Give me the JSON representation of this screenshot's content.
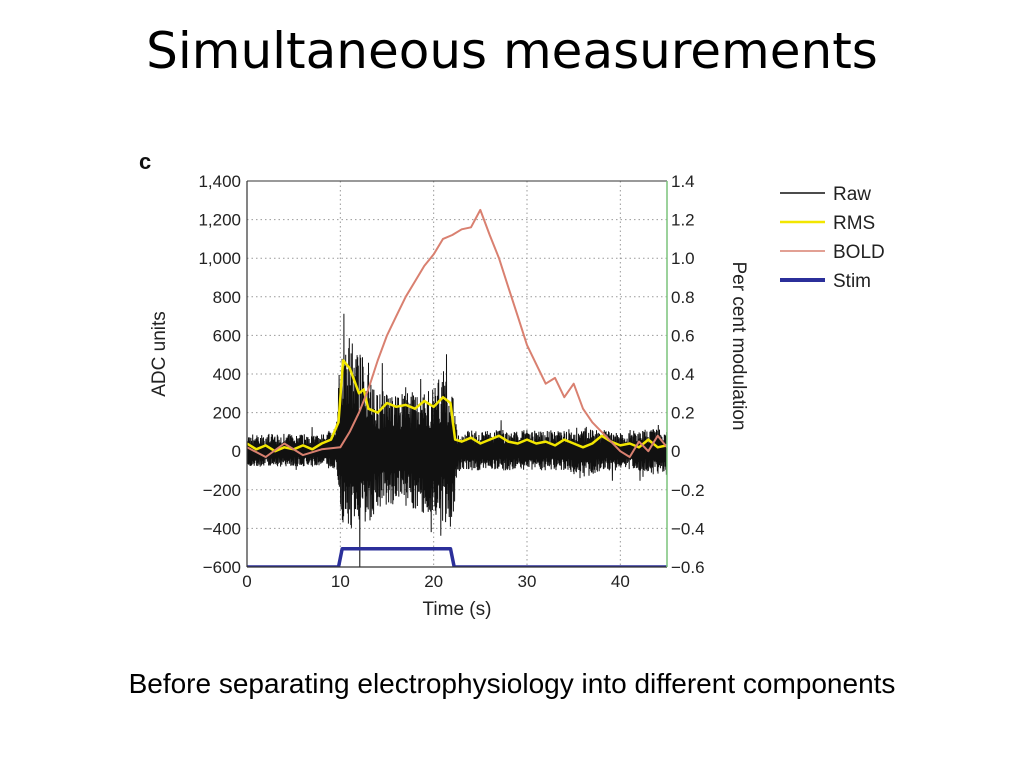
{
  "slide": {
    "title": "Simultaneous measurements",
    "caption": "Before separating electrophysiology into different components"
  },
  "chart_data": {
    "type": "line",
    "panel_label": "c",
    "xlabel": "Time (s)",
    "ylabel_left": "ADC units",
    "ylabel_right": "Per cent modulation",
    "xlim": [
      0,
      45
    ],
    "ylim_left": [
      -600,
      1400
    ],
    "ylim_right": [
      -0.6,
      1.4
    ],
    "x_ticks": [
      0,
      10,
      20,
      30,
      40
    ],
    "x_tick_labels": [
      "0",
      "10",
      "20",
      "30",
      "40"
    ],
    "y_left_ticks": [
      1400,
      1200,
      1000,
      800,
      600,
      400,
      200,
      0,
      -200,
      -400,
      -600
    ],
    "y_left_tick_labels": [
      "1,400",
      "1,200",
      "1,000",
      "800",
      "600",
      "400",
      "200",
      "0",
      "−200",
      "−400",
      "−600"
    ],
    "y_right_ticks": [
      1.4,
      1.2,
      1.0,
      0.8,
      0.6,
      0.4,
      0.2,
      0,
      -0.2,
      -0.4,
      -0.6
    ],
    "y_right_tick_labels": [
      "1.4",
      "1.2",
      "1.0",
      "0.8",
      "0.6",
      "0.4",
      "0.2",
      "0",
      "−0.2",
      "−0.4",
      "−0.6"
    ],
    "grid": true,
    "legend_position": "right",
    "series": [
      {
        "name": "Raw",
        "color": "#111111",
        "axis": "left",
        "x": [
          0,
          2,
          4,
          6,
          8,
          9.5,
          10,
          11,
          12,
          13,
          14,
          16,
          18,
          20,
          21,
          22,
          22.5,
          24,
          26,
          28,
          30,
          32,
          34,
          36,
          38,
          40,
          42,
          44,
          45
        ],
        "envelope_low": [
          -80,
          -80,
          -80,
          -80,
          -80,
          -100,
          -350,
          -430,
          -420,
          -380,
          -300,
          -280,
          -300,
          -350,
          -380,
          -400,
          -120,
          -100,
          -100,
          -100,
          -100,
          -100,
          -100,
          -150,
          -100,
          -100,
          -100,
          -120,
          -100
        ],
        "envelope_high": [
          90,
          90,
          90,
          90,
          90,
          120,
          500,
          540,
          520,
          480,
          320,
          300,
          320,
          340,
          420,
          320,
          100,
          110,
          110,
          110,
          110,
          110,
          110,
          130,
          110,
          110,
          110,
          120,
          100
        ]
      },
      {
        "name": "RMS",
        "color": "#f2e600",
        "axis": "left",
        "x": [
          0,
          1,
          2,
          3,
          4,
          5,
          6,
          7,
          8,
          9,
          9.8,
          10.3,
          11,
          12,
          12.5,
          13,
          14,
          15,
          16,
          17,
          18,
          19,
          20,
          21,
          21.8,
          22.3,
          23,
          24,
          25,
          26,
          27,
          28,
          29,
          30,
          31,
          32,
          33,
          34,
          35,
          36,
          37,
          38,
          39,
          40,
          41,
          42,
          43,
          44,
          45
        ],
        "values": [
          40,
          10,
          30,
          0,
          20,
          10,
          30,
          10,
          40,
          60,
          150,
          470,
          430,
          300,
          320,
          220,
          200,
          250,
          230,
          240,
          220,
          260,
          230,
          280,
          250,
          60,
          50,
          70,
          40,
          60,
          80,
          50,
          40,
          60,
          40,
          50,
          30,
          60,
          40,
          20,
          40,
          80,
          50,
          30,
          40,
          20,
          60,
          20,
          30
        ]
      },
      {
        "name": "BOLD",
        "color": "#d98070",
        "axis": "right",
        "x": [
          0,
          2,
          4,
          6,
          8,
          10,
          11,
          12,
          13,
          14,
          15,
          16,
          17,
          18,
          19,
          20,
          21,
          22,
          23,
          24,
          25,
          26,
          27,
          28,
          29,
          30,
          31,
          32,
          33,
          34,
          35,
          36,
          37,
          38,
          39,
          40,
          41,
          42,
          43,
          44,
          45
        ],
        "values": [
          0.02,
          -0.03,
          0.04,
          -0.02,
          0.01,
          0.02,
          0.1,
          0.2,
          0.32,
          0.47,
          0.6,
          0.7,
          0.8,
          0.88,
          0.96,
          1.02,
          1.1,
          1.12,
          1.15,
          1.16,
          1.25,
          1.12,
          1.0,
          0.85,
          0.7,
          0.55,
          0.45,
          0.35,
          0.38,
          0.28,
          0.35,
          0.22,
          0.15,
          0.1,
          0.05,
          0.0,
          -0.03,
          0.05,
          0.0,
          0.08,
          0.02
        ]
      },
      {
        "name": "Stim",
        "color": "#2b2f9a",
        "axis": "left",
        "x": [
          0,
          9.8,
          10.2,
          21.8,
          22.2,
          45
        ],
        "values": [
          -600,
          -600,
          -505,
          -505,
          -600,
          -600
        ]
      }
    ]
  }
}
